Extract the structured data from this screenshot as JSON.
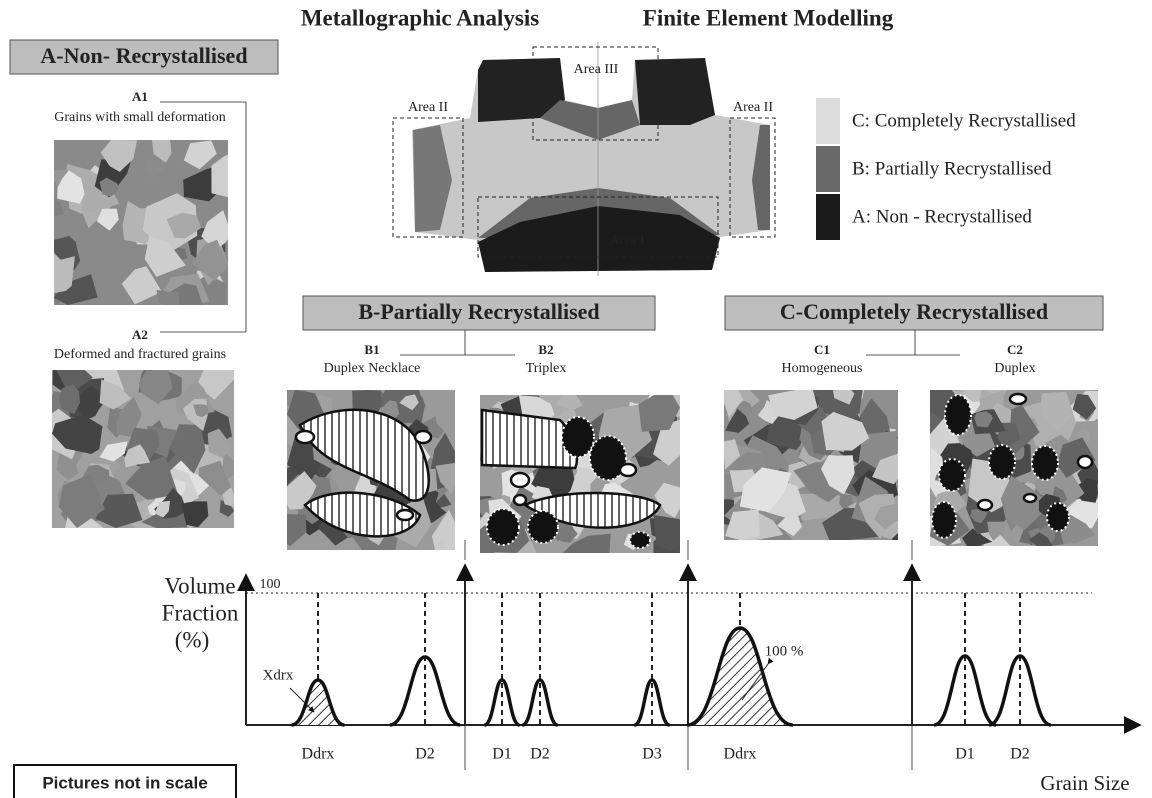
{
  "header": {
    "left_title": "Metallographic Analysis",
    "right_title": "Finite Element Modelling"
  },
  "section_a": {
    "title": "A-Non- Recrystallised",
    "a1": {
      "label": "A1",
      "caption": "Grains with small deformation"
    },
    "a2": {
      "label": "A2",
      "caption": "Deformed and fractured grains"
    }
  },
  "model": {
    "areas": [
      "Area III",
      "Area II",
      "Area II",
      "Area I"
    ]
  },
  "legend": [
    "C: Completely Recrystallised",
    "B: Partially Recrystallised",
    "A:  Non - Recrystallised"
  ],
  "section_b": {
    "title": "B-Partially Recrystallised",
    "b1": {
      "label": "B1",
      "caption": "Duplex Necklace"
    },
    "b2": {
      "label": "B2",
      "caption": "Triplex"
    }
  },
  "section_c": {
    "title": "C-Completely Recrystallised",
    "c1": {
      "label": "C1",
      "caption": "Homogeneous"
    },
    "c2": {
      "label": "C2",
      "caption": "Duplex"
    }
  },
  "distribution": {
    "y_axis_label": [
      "Volume",
      "Fraction",
      "(%)"
    ],
    "y_max_label": "100",
    "x_axis_label": "Grain Size",
    "annotations": [
      "Xdrx",
      "100 %"
    ],
    "peaks": [
      "Ddrx",
      "D2",
      "D1",
      "D2",
      "D3",
      "Ddrx",
      "D1",
      "D2"
    ]
  },
  "note": "Pictures not in scale"
}
